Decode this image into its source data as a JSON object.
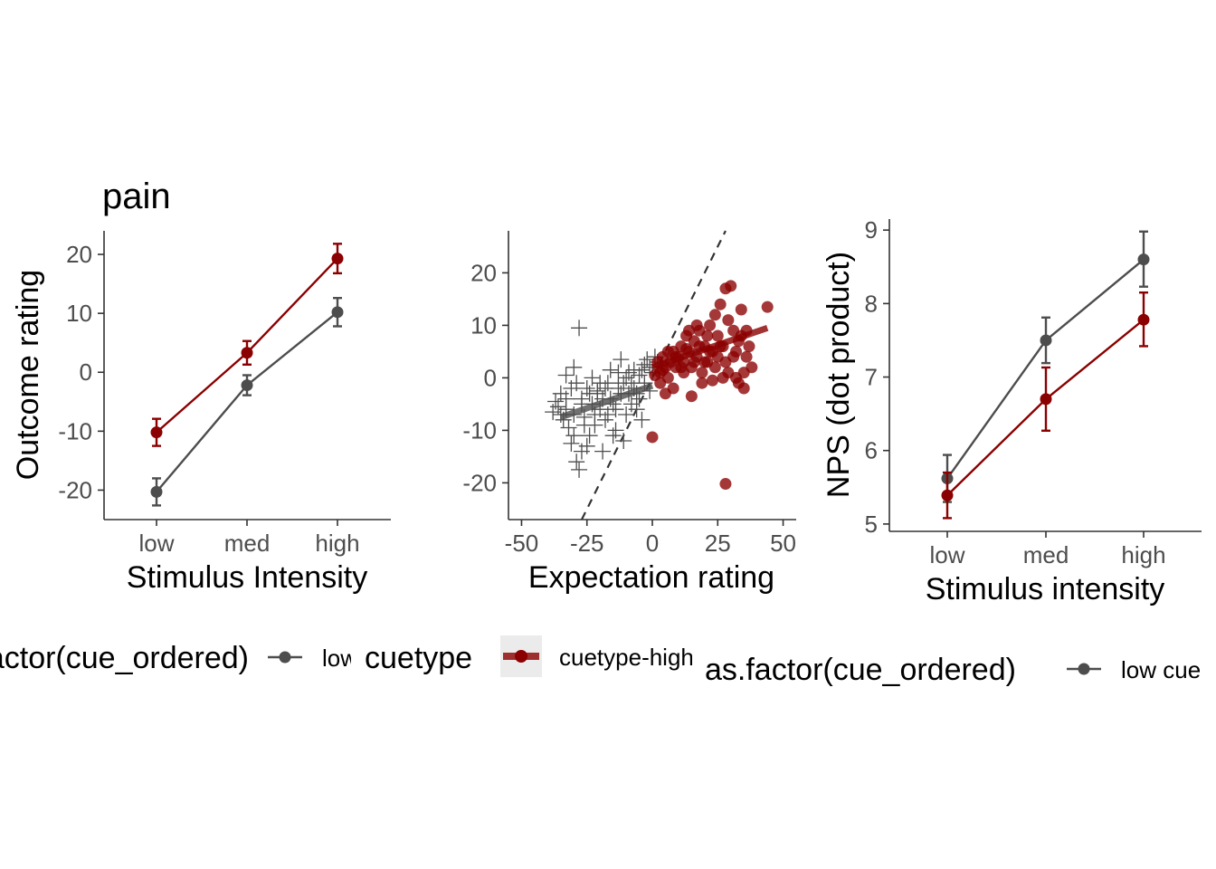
{
  "colors": {
    "low_cue": "#4d4d4d",
    "high_cue": "#8b0000",
    "axis": "#333333",
    "tick_text": "#4d4d4d",
    "legend_key_bg": "#ebebeb"
  },
  "chart_data": [
    {
      "type": "line",
      "title": "pain",
      "xlabel": "Stimulus Intensity",
      "ylabel": "Outcome rating",
      "categories": [
        "low",
        "med",
        "high"
      ],
      "ylim": [
        -25,
        24
      ],
      "yticks": [
        -20,
        -10,
        0,
        10,
        20
      ],
      "ytick_labels": [
        "-20",
        "-10",
        "0",
        "10",
        "20"
      ],
      "grid": false,
      "series": [
        {
          "key": "low_cue",
          "values": [
            -20.3,
            -2.2,
            10.2
          ],
          "err_low": [
            -22.6,
            -3.9,
            7.8
          ],
          "err_high": [
            -18.0,
            -0.5,
            12.6
          ]
        },
        {
          "key": "high_cue",
          "values": [
            -10.2,
            3.3,
            19.3
          ],
          "err_low": [
            -12.5,
            1.3,
            16.8
          ],
          "err_high": [
            -7.9,
            5.3,
            21.8
          ]
        }
      ],
      "legend": {
        "position": "bottom",
        "title": "as.factor(cue_ordered)",
        "entries": [
          "low cue"
        ]
      }
    },
    {
      "type": "scatter",
      "title": "",
      "xlabel": "Expectation rating",
      "ylabel": "",
      "xlim": [
        -55,
        55
      ],
      "ylim": [
        -27,
        28
      ],
      "xticks": [
        -50,
        -25,
        0,
        25,
        50
      ],
      "xtick_labels": [
        "-50",
        "-25",
        "0",
        "25",
        "50"
      ],
      "yticks": [
        -20,
        -10,
        0,
        10,
        20
      ],
      "ytick_labels": [
        "-20",
        "-10",
        "0",
        "10",
        "20"
      ],
      "grid": false,
      "identity_line": {
        "style": "dashed",
        "from": [
          -27,
          -27
        ],
        "to": [
          28,
          28
        ]
      },
      "series": [
        {
          "key": "low_cue",
          "marker": "cross",
          "fit": {
            "x": [
              -35,
              0
            ],
            "y": [
              -7.5,
              -1.5
            ]
          },
          "points": [
            [
              -28,
              9.5
            ],
            [
              -30,
              2
            ],
            [
              -33,
              0.5
            ],
            [
              -29,
              -1
            ],
            [
              -31,
              -2
            ],
            [
              -35,
              -3
            ],
            [
              -33,
              -4
            ],
            [
              -36,
              -5.5
            ],
            [
              -38,
              -6.5
            ],
            [
              -34,
              -8
            ],
            [
              -32,
              -9.5
            ],
            [
              -30,
              -11
            ],
            [
              -31,
              -12.5
            ],
            [
              -27,
              -14
            ],
            [
              -29,
              -16
            ],
            [
              -28,
              -17.5
            ],
            [
              -25,
              -13
            ],
            [
              -24,
              -11
            ],
            [
              -26,
              -9
            ],
            [
              -22,
              -7
            ],
            [
              -20,
              -6
            ],
            [
              -23,
              -5
            ],
            [
              -19,
              -4
            ],
            [
              -21,
              -3
            ],
            [
              -18,
              -2
            ],
            [
              -17,
              -1
            ],
            [
              -16,
              -4
            ],
            [
              -15,
              -5
            ],
            [
              -14,
              -6
            ],
            [
              -12,
              -3
            ],
            [
              -13,
              -2
            ],
            [
              -11,
              -1
            ],
            [
              -10,
              0
            ],
            [
              -9,
              1
            ],
            [
              -8,
              -1
            ],
            [
              -7,
              -2
            ],
            [
              -6,
              -3
            ],
            [
              -5,
              0.5
            ],
            [
              -4,
              1.5
            ],
            [
              -3,
              2.5
            ],
            [
              -2,
              3.5
            ],
            [
              -1,
              2
            ],
            [
              0,
              1
            ],
            [
              1,
              4
            ],
            [
              2,
              3
            ],
            [
              -12,
              3.5
            ],
            [
              -16,
              1.5
            ],
            [
              -20,
              -1
            ],
            [
              -24,
              -3
            ],
            [
              -27,
              -5
            ],
            [
              -30,
              -7
            ],
            [
              -22,
              -9
            ],
            [
              -18,
              -8
            ],
            [
              -14,
              -10
            ],
            [
              -10,
              -7
            ],
            [
              -8,
              -5
            ],
            [
              -6,
              -6
            ],
            [
              -4,
              -8
            ],
            [
              -11,
              -12
            ],
            [
              -15,
              -11
            ],
            [
              -19,
              -14
            ],
            [
              -27,
              -4
            ],
            [
              -25,
              -2
            ],
            [
              -23,
              0
            ],
            [
              -13,
              1
            ],
            [
              -9,
              -3
            ],
            [
              -3,
              -1
            ],
            [
              -1,
              -2.5
            ],
            [
              -17,
              -7
            ],
            [
              -21,
              -2.5
            ],
            [
              -26,
              -7.5
            ],
            [
              -33,
              -6
            ],
            [
              -37,
              -4.5
            ],
            [
              -35,
              -7
            ],
            [
              -7,
              1.5
            ],
            [
              -5,
              -4
            ]
          ]
        },
        {
          "key": "high_cue",
          "marker": "circle",
          "fit": {
            "x": [
              0,
              44
            ],
            "y": [
              2,
              9.5
            ]
          },
          "points": [
            [
              2,
              3
            ],
            [
              3,
              1
            ],
            [
              4,
              4
            ],
            [
              5,
              2
            ],
            [
              6,
              0
            ],
            [
              7,
              3
            ],
            [
              8,
              5
            ],
            [
              9,
              2
            ],
            [
              10,
              4
            ],
            [
              11,
              6
            ],
            [
              12,
              3
            ],
            [
              13,
              8
            ],
            [
              14,
              5
            ],
            [
              15,
              2
            ],
            [
              16,
              7
            ],
            [
              17,
              4
            ],
            [
              18,
              9
            ],
            [
              19,
              1
            ],
            [
              20,
              6
            ],
            [
              21,
              3
            ],
            [
              22,
              10
            ],
            [
              23,
              5
            ],
            [
              24,
              12
            ],
            [
              25,
              8
            ],
            [
              26,
              14
            ],
            [
              27,
              6
            ],
            [
              28,
              3
            ],
            [
              29,
              11
            ],
            [
              30,
              17.5
            ],
            [
              31,
              9
            ],
            [
              32,
              5
            ],
            [
              33,
              7
            ],
            [
              34,
              13
            ],
            [
              35,
              1
            ],
            [
              36,
              4
            ],
            [
              28,
              17
            ],
            [
              44,
              13.5
            ],
            [
              5,
              -3
            ],
            [
              3,
              -1
            ],
            [
              1,
              0.5
            ],
            [
              8,
              -2
            ],
            [
              12,
              1
            ],
            [
              15,
              -3.5
            ],
            [
              19,
              -1
            ],
            [
              23,
              -0.5
            ],
            [
              27,
              0
            ],
            [
              33,
              -1
            ],
            [
              35,
              -2
            ],
            [
              0,
              -11.3
            ],
            [
              28,
              -20.2
            ],
            [
              14,
              9
            ],
            [
              17,
              10
            ],
            [
              20,
              3
            ],
            [
              22,
              5
            ],
            [
              24,
              2
            ],
            [
              26,
              6
            ],
            [
              31,
              4
            ],
            [
              34,
              8
            ],
            [
              36,
              9
            ],
            [
              38,
              2
            ],
            [
              9,
              4
            ],
            [
              11,
              2
            ],
            [
              13,
              5.5
            ],
            [
              6,
              5
            ],
            [
              4,
              1.5
            ],
            [
              16,
              3
            ],
            [
              18,
              6
            ],
            [
              21,
              8
            ],
            [
              25,
              4
            ],
            [
              29,
              1
            ],
            [
              32,
              0
            ],
            [
              37,
              6
            ]
          ]
        }
      ],
      "legend": {
        "position": "bottom",
        "title": "cuetype",
        "entries": [
          "cuetype-high"
        ]
      }
    },
    {
      "type": "line",
      "title": "",
      "xlabel": "Stimulus intensity",
      "ylabel": "NPS (dot product)",
      "categories": [
        "low",
        "med",
        "high"
      ],
      "ylim": [
        4.9,
        9.15
      ],
      "yticks": [
        5,
        6,
        7,
        8,
        9
      ],
      "ytick_labels": [
        "5",
        "6",
        "7",
        "8",
        "9"
      ],
      "grid": false,
      "series": [
        {
          "key": "low_cue",
          "values": [
            5.62,
            7.5,
            8.6
          ],
          "err_low": [
            5.3,
            7.19,
            8.23
          ],
          "err_high": [
            5.94,
            7.81,
            8.98
          ]
        },
        {
          "key": "high_cue",
          "values": [
            5.39,
            6.7,
            7.78
          ],
          "err_low": [
            5.08,
            6.27,
            7.42
          ],
          "err_high": [
            5.7,
            7.13,
            8.15
          ]
        }
      ],
      "legend": {
        "position": "bottom",
        "title": "as.factor(cue_ordered)",
        "entries": [
          "low cue"
        ]
      }
    }
  ]
}
